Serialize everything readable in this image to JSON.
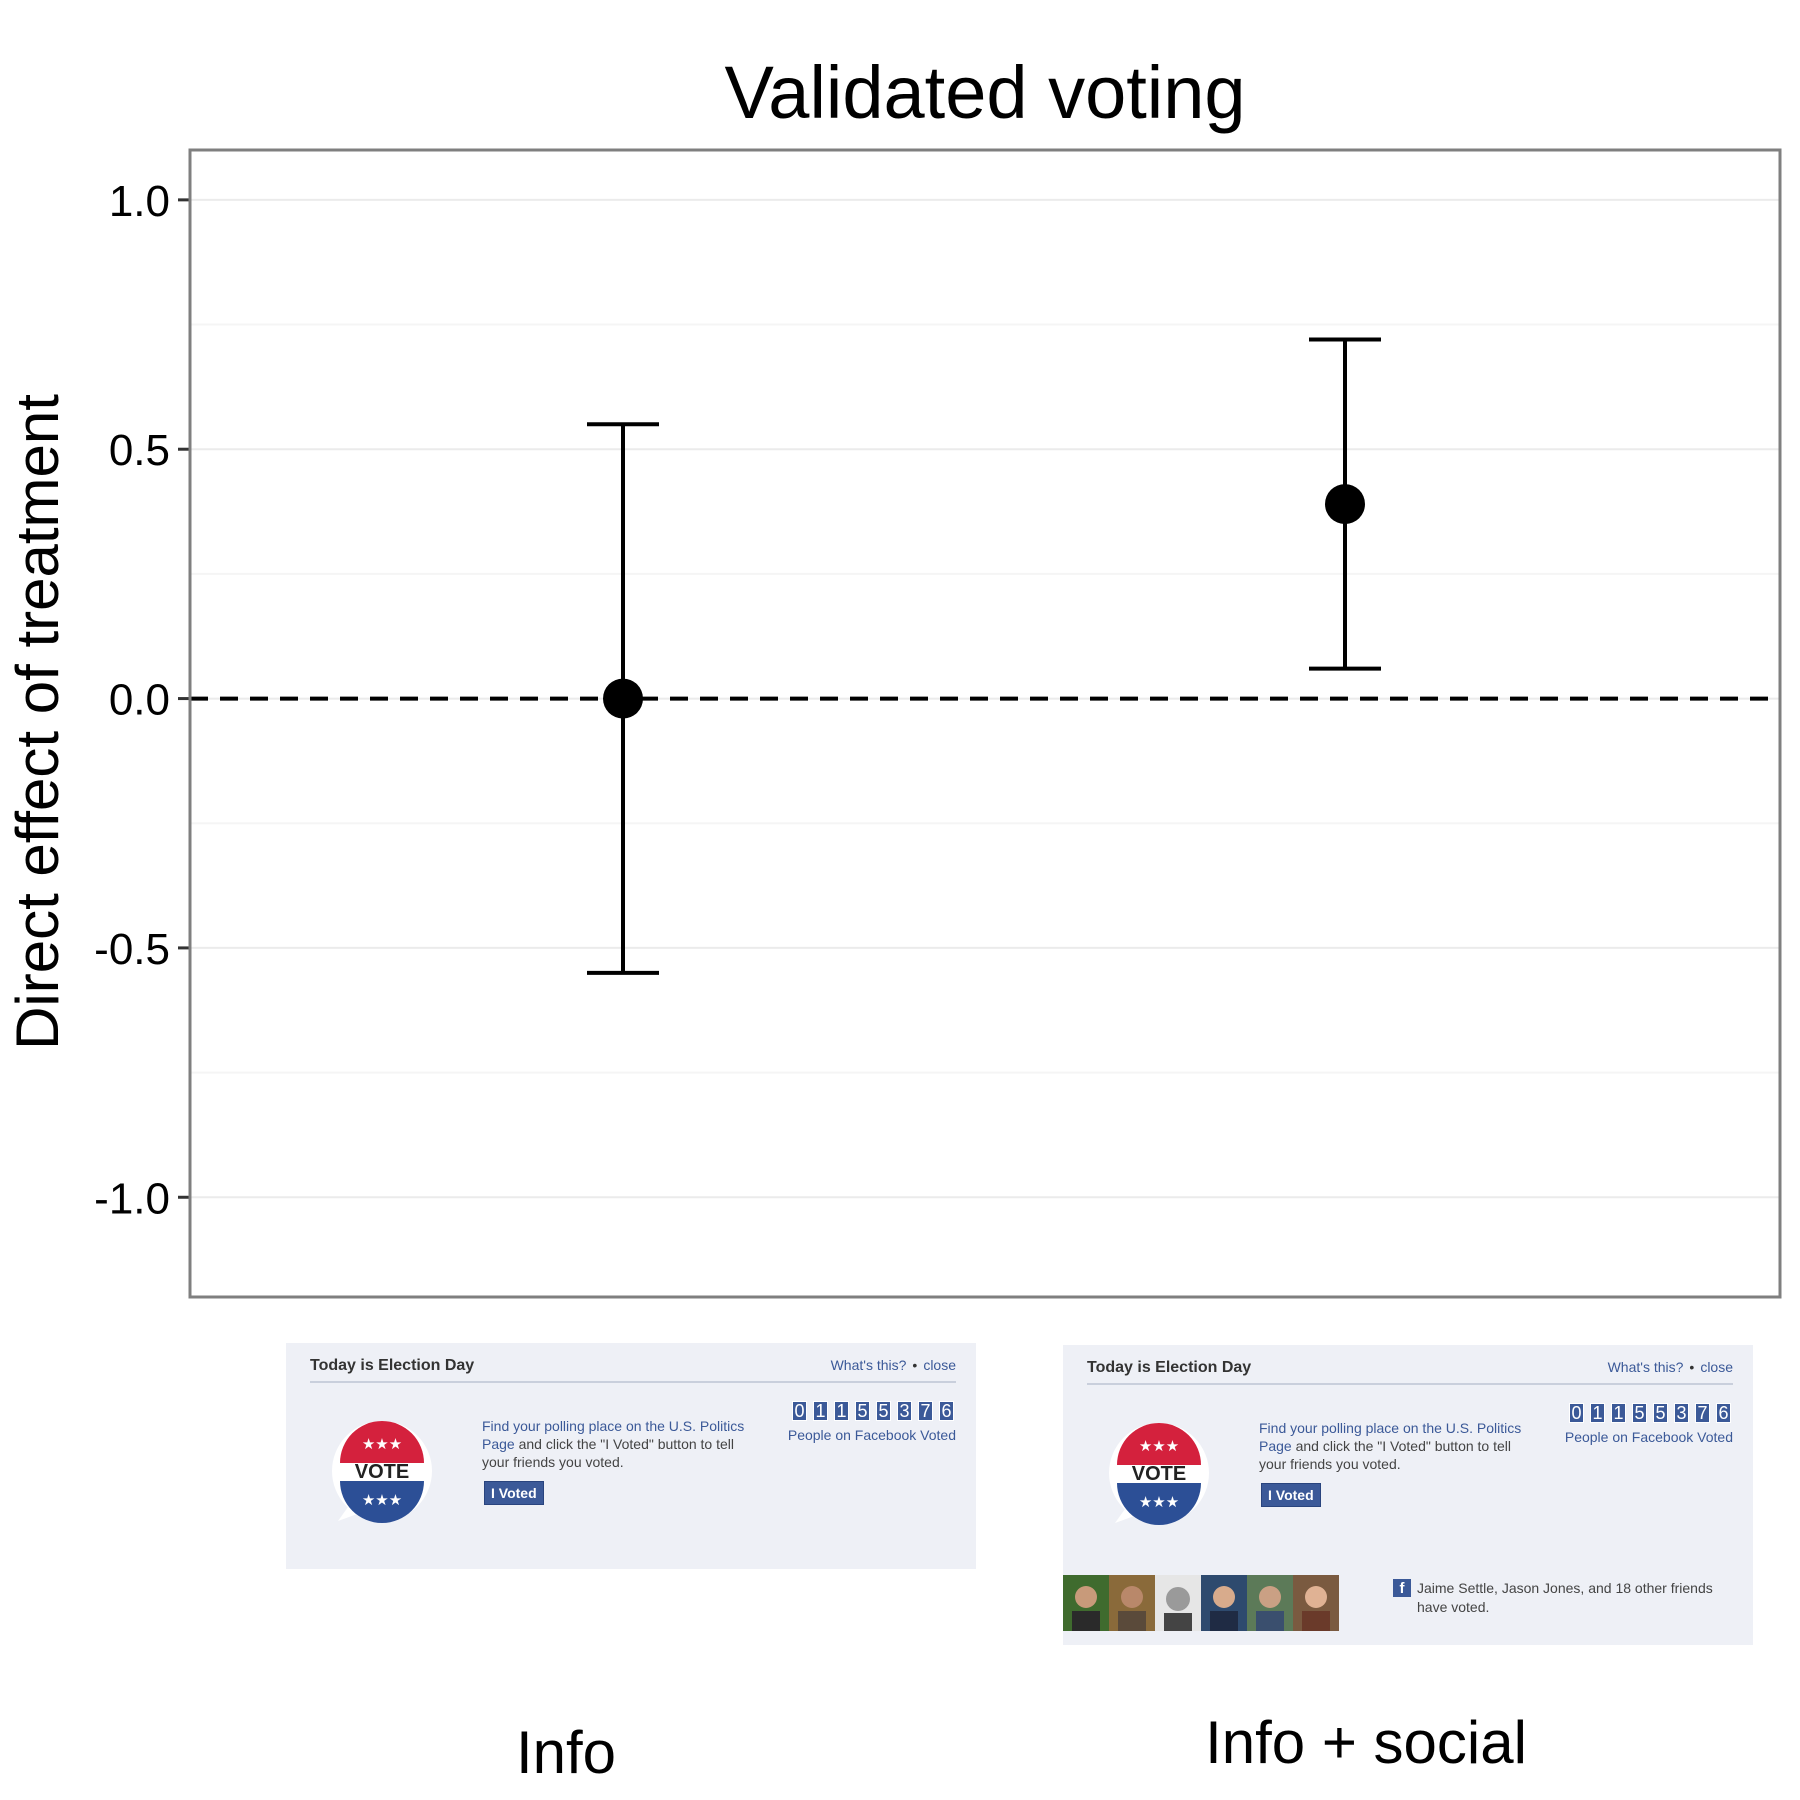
{
  "chart_data": {
    "type": "errorbar",
    "title": "Validated voting",
    "xlabel": "",
    "ylabel": "Direct effect of treatment",
    "ylim": [
      -1.2,
      1.1
    ],
    "yticks": [
      1.0,
      0.5,
      0.0,
      -0.5,
      -1.0
    ],
    "ytick_labels": [
      "1.0",
      "0.5",
      "0.0",
      "-0.5",
      "-1.0"
    ],
    "reference_line": {
      "y": 0.0,
      "style": "dashed"
    },
    "grid": true,
    "categories": [
      "Info",
      "Info + social"
    ],
    "points": [
      {
        "label": "Info",
        "estimate": 0.0,
        "ci_low": -0.55,
        "ci_high": 0.55
      },
      {
        "label": "Info + social",
        "estimate": 0.39,
        "ci_low": 0.06,
        "ci_high": 0.72
      }
    ],
    "colors": {
      "point": "#000000",
      "grid": "#ebebeb",
      "frame": "#7f7f7f"
    }
  },
  "banners": [
    {
      "title": "Today is Election Day",
      "links": [
        "What's this?",
        "close"
      ],
      "badge_text": "VOTE",
      "instructions_link": "Find your polling place on the U.S. Politics Page",
      "instructions_rest": " and click the \"I Voted\" button to tell your friends you voted.",
      "button": "I Voted",
      "counter_digits": [
        "0",
        "1",
        "1",
        "5",
        "5",
        "3",
        "7",
        "6"
      ],
      "counter_label": "People on Facebook Voted"
    },
    {
      "title": "Today is Election Day",
      "links": [
        "What's this?",
        "close"
      ],
      "badge_text": "VOTE",
      "instructions_link": "Find your polling place on the U.S. Politics Page",
      "instructions_rest": " and click the \"I Voted\" button to tell your friends you voted.",
      "button": "I Voted",
      "counter_digits": [
        "0",
        "1",
        "1",
        "5",
        "5",
        "3",
        "7",
        "6"
      ],
      "counter_label": "People on Facebook Voted",
      "fb_icon": "f",
      "friends_text": "Jaime Settle, Jason Jones, and 18 other friends have voted."
    }
  ]
}
